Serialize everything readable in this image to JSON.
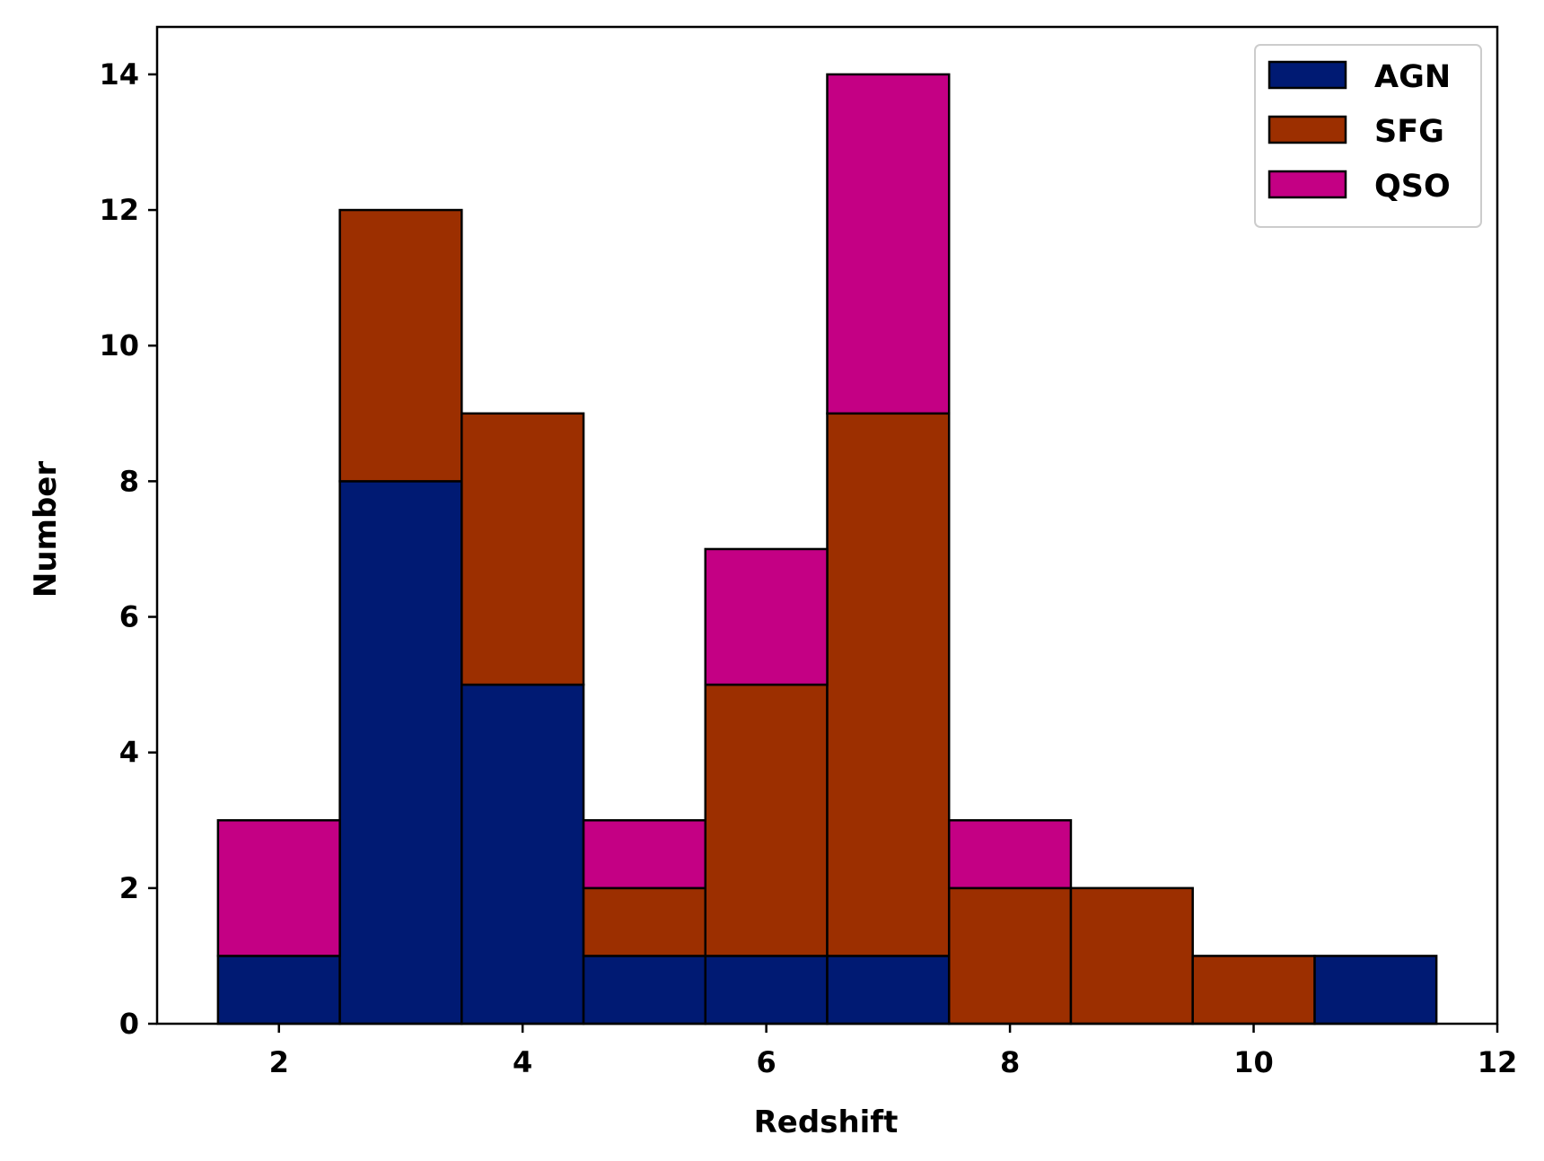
{
  "chart_data": {
    "type": "bar",
    "stacked": true,
    "xlabel": "Redshift",
    "ylabel": "Number",
    "xlim": [
      1,
      12
    ],
    "ylim": [
      0,
      14.7
    ],
    "xticks": [
      2,
      4,
      6,
      8,
      10,
      12
    ],
    "yticks": [
      0,
      2,
      4,
      6,
      8,
      10,
      12,
      14
    ],
    "bin_width": 1,
    "x": [
      2,
      3,
      4,
      5,
      6,
      7,
      8,
      9,
      10,
      11
    ],
    "series": [
      {
        "name": "AGN",
        "color": "#001a73",
        "values": [
          1,
          8,
          5,
          1,
          1,
          1,
          0,
          0,
          0,
          1
        ]
      },
      {
        "name": "SFG",
        "color": "#9c2f00",
        "values": [
          0,
          4,
          4,
          1,
          4,
          8,
          2,
          2,
          1,
          0
        ]
      },
      {
        "name": "QSO",
        "color": "#c40084",
        "values": [
          2,
          0,
          0,
          1,
          2,
          5,
          1,
          0,
          0,
          0
        ]
      }
    ],
    "legend_position": "top-right",
    "grid": false
  }
}
